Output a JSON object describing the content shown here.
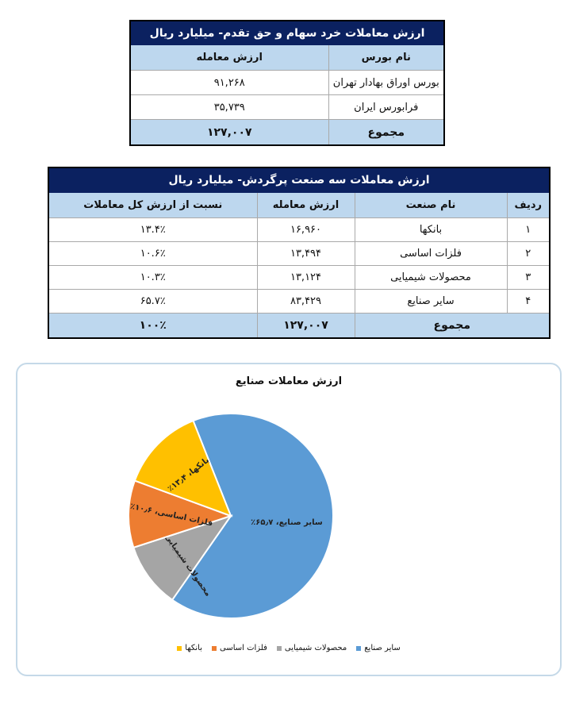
{
  "table_exchanges": {
    "title": "ارزش معاملات خرد سهام و حق تقدم- میلیارد ریال",
    "headers": {
      "exchange_name": "نام بورس",
      "trade_value": "ارزش معامله"
    },
    "rows": [
      {
        "exchange_name": "بورس اوراق بهادار تهران",
        "trade_value": "۹۱,۲۶۸"
      },
      {
        "exchange_name": "فرابورس ایران",
        "trade_value": "۳۵,۷۳۹"
      }
    ],
    "total": {
      "label": "مجموع",
      "trade_value": "۱۲۷,۰۰۷"
    }
  },
  "table_industries": {
    "title": "ارزش معاملات سه صنعت پرگردش- میلیارد ریال",
    "headers": {
      "row": "ردیف",
      "industry_name": "نام صنعت",
      "trade_value": "ارزش معامله",
      "share": "نسبت از ارزش کل معاملات"
    },
    "rows": [
      {
        "row": "۱",
        "industry_name": "بانکها",
        "trade_value": "۱۶,۹۶۰",
        "share": "۱۳.۴٪"
      },
      {
        "row": "۲",
        "industry_name": "فلزات اساسی",
        "trade_value": "۱۳,۴۹۴",
        "share": "۱۰.۶٪"
      },
      {
        "row": "۳",
        "industry_name": "محصولات شیمیایی",
        "trade_value": "۱۳,۱۲۴",
        "share": "۱۰.۳٪"
      },
      {
        "row": "۴",
        "industry_name": "سایر صنایع",
        "trade_value": "۸۳,۴۲۹",
        "share": "۶۵.۷٪"
      }
    ],
    "total": {
      "label": "مجموع",
      "trade_value": "۱۲۷,۰۰۷",
      "share": "۱۰۰٪"
    }
  },
  "chart_data": {
    "type": "pie",
    "title": "ارزش معاملات صنایع",
    "categories": [
      "سایر صنایع",
      "محصولات شیمیایی",
      "فلزات اساسی",
      "بانکها"
    ],
    "values": [
      65.7,
      10.3,
      10.6,
      13.4
    ],
    "unit": "%",
    "colors": [
      "#5b9bd5",
      "#a5a5a5",
      "#ed7d31",
      "#ffc000"
    ],
    "data_labels": [
      "سایر صنایع، ۶۵٫۷٪",
      "محصولات شیمیایی، ۱۰٫۳٪",
      "فلزات اساسی، ۱۰٫۶٪",
      "بانکها، ۱۳٫۴٪"
    ],
    "legend_position": "bottom"
  }
}
